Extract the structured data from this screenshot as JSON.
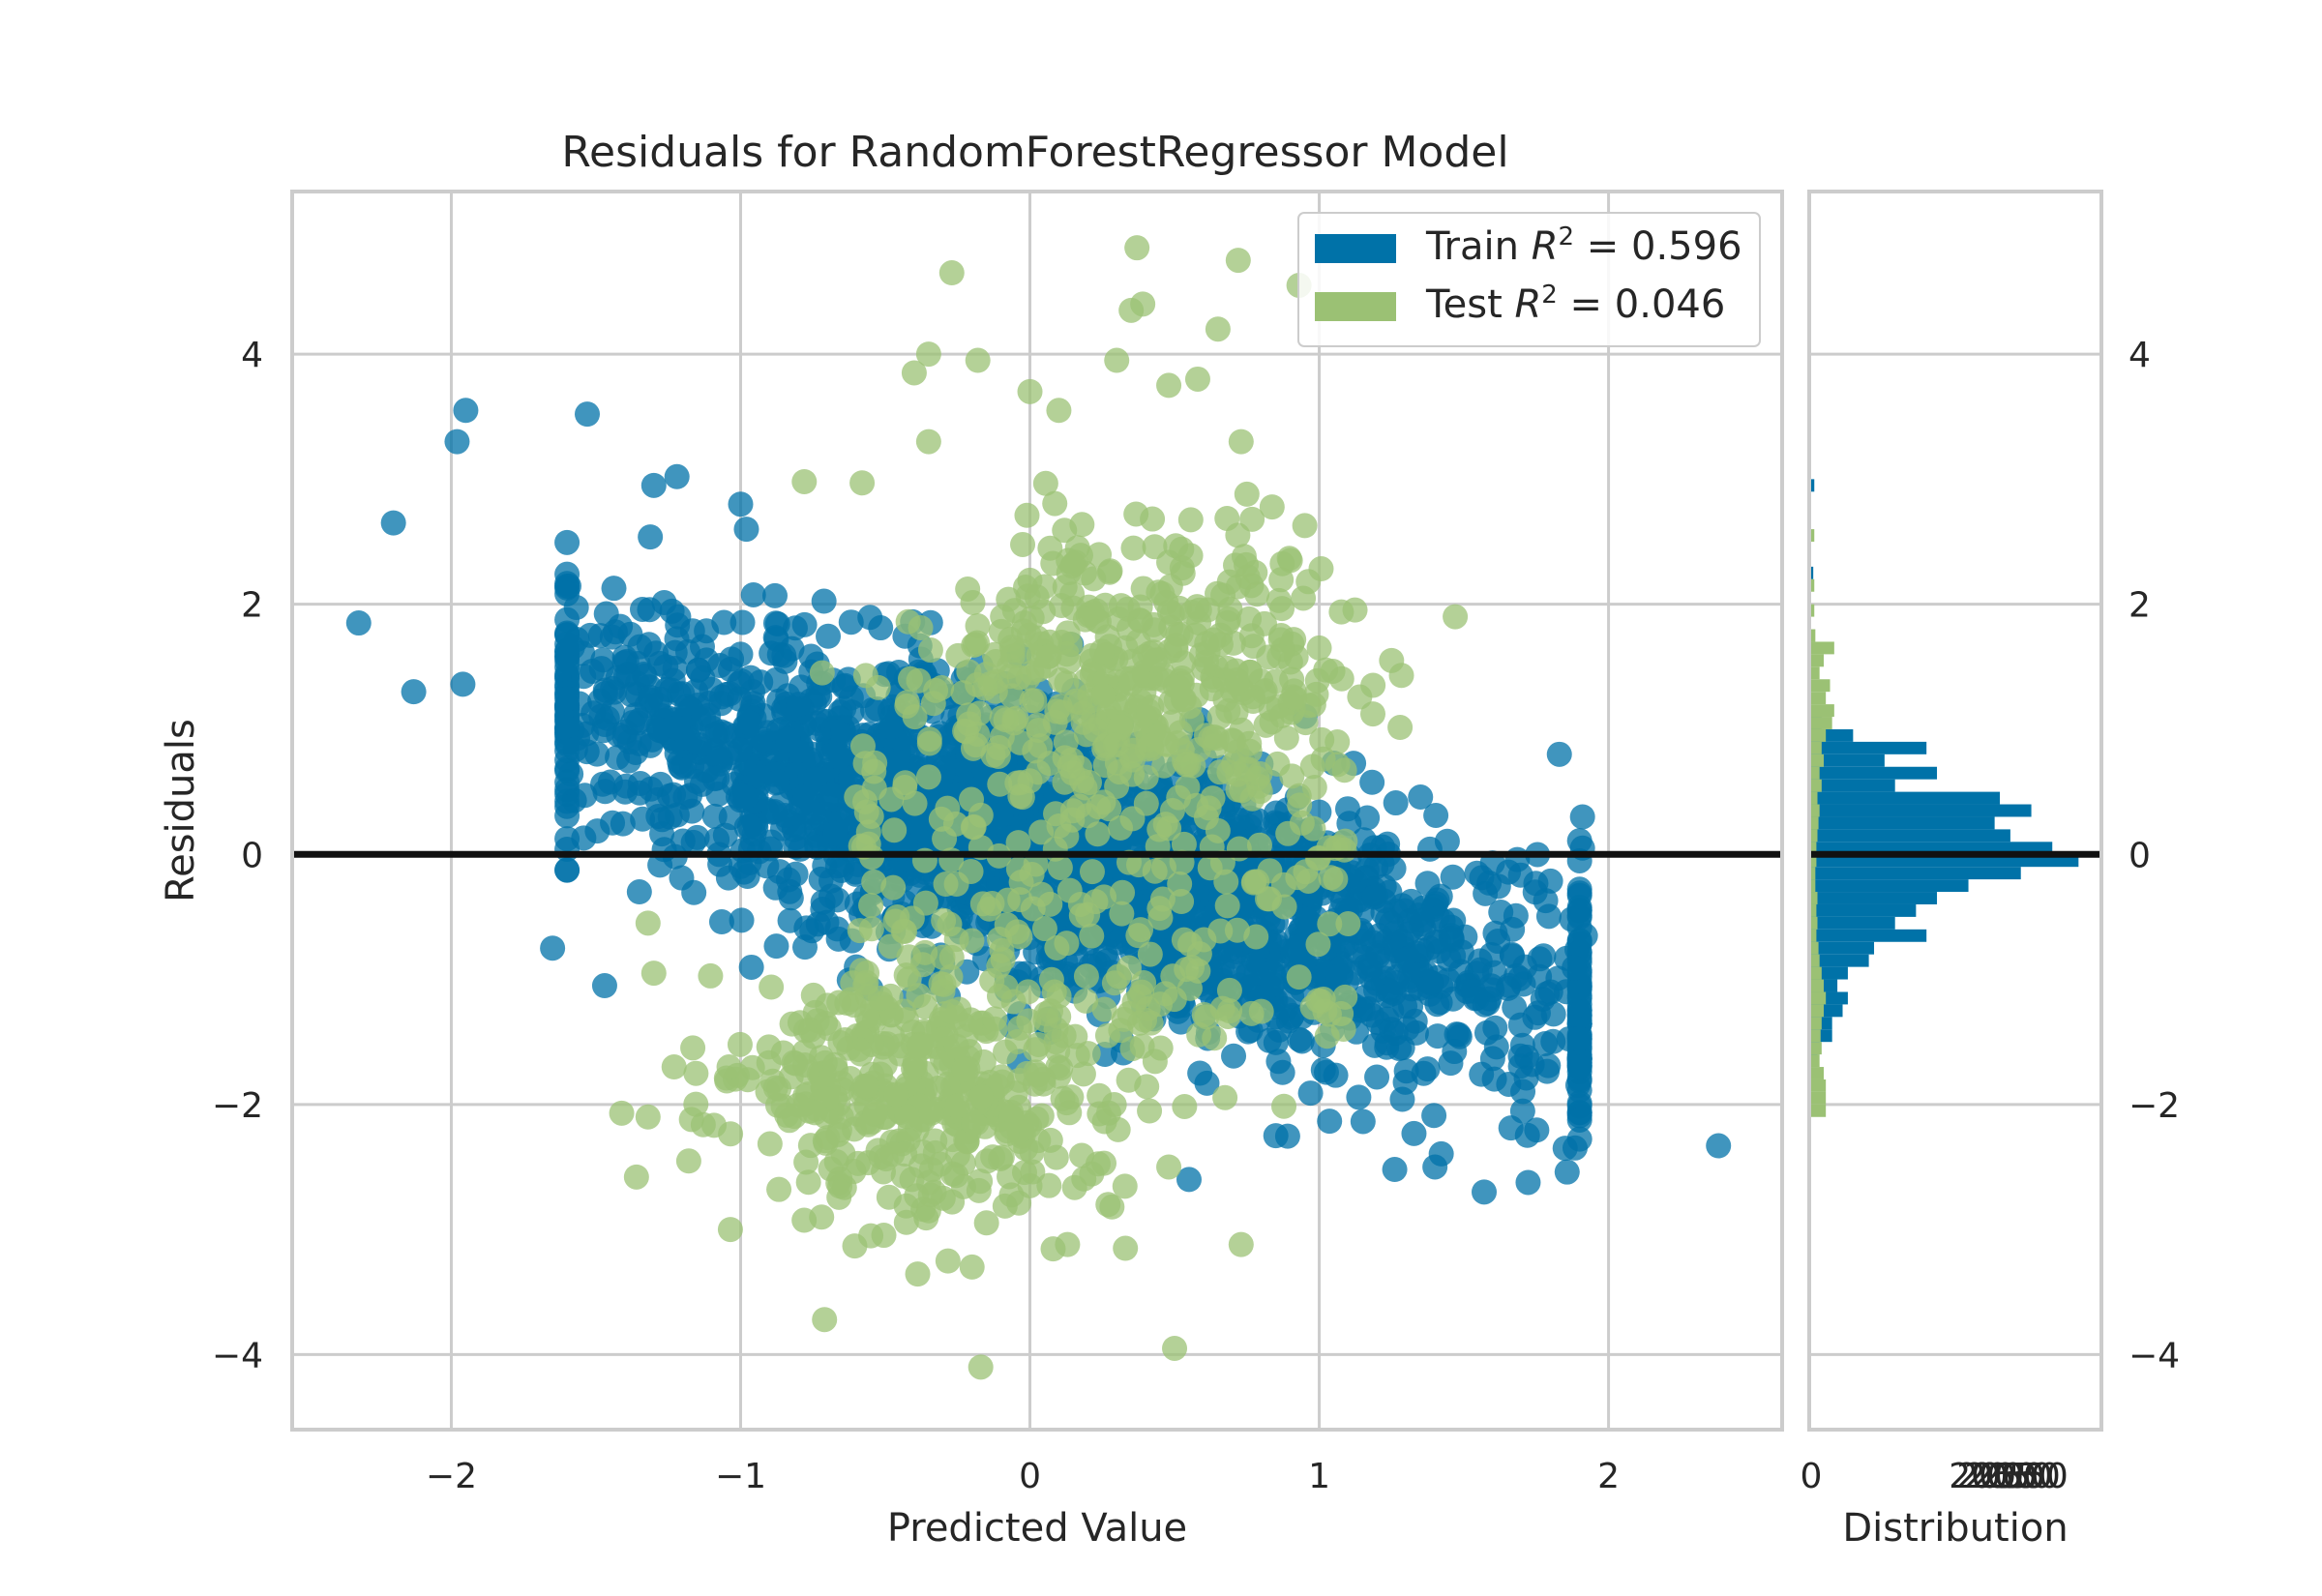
{
  "chart_data": [
    {
      "type": "scatter",
      "title": "Residuals for RandomForestRegressor Model",
      "xlabel": "Predicted Value",
      "ylabel": "Residuals",
      "xlim": [
        -2.55,
        2.6
      ],
      "ylim": [
        -4.6,
        5.3
      ],
      "xticks": [
        -2,
        -1,
        0,
        1,
        2
      ],
      "xtick_labels": [
        "−2",
        "−1",
        "0",
        "1",
        "2"
      ],
      "yticks": [
        -4,
        -2,
        0,
        2,
        4
      ],
      "ytick_labels": [
        "−4",
        "−2",
        "0",
        "2",
        "4"
      ],
      "grid": true,
      "legend_position": "top-right",
      "reference_line": 0,
      "series": [
        {
          "name": "Train",
          "legend_prefix": "Train ",
          "legend_value": "0.596",
          "color": "#0072a8",
          "generated": {
            "count": 2600,
            "x_mean": 0.1,
            "x_sd": 0.9,
            "slope": -0.7,
            "noise_sd": 0.55,
            "seed": 7
          },
          "points": [
            [
              -2.32,
              1.85
            ],
            [
              -2.2,
              2.65
            ],
            [
              -1.95,
              3.55
            ],
            [
              -1.98,
              3.3
            ],
            [
              -1.53,
              3.52
            ],
            [
              -2.13,
              1.3
            ],
            [
              -1.96,
              1.36
            ],
            [
              -1.65,
              -0.75
            ],
            [
              -1.47,
              -1.05
            ],
            [
              -1.3,
              2.95
            ],
            [
              -1.22,
              3.02
            ],
            [
              -1.0,
              2.8
            ],
            [
              -0.98,
              2.6
            ],
            [
              2.38,
              -2.33
            ],
            [
              1.57,
              -2.7
            ],
            [
              1.4,
              -2.5
            ],
            [
              0.55,
              -2.6
            ],
            [
              1.85,
              -2.35
            ],
            [
              0.85,
              -2.25
            ],
            [
              1.83,
              0.8
            ],
            [
              1.91,
              0.3
            ],
            [
              1.91,
              0.05
            ],
            [
              1.92,
              -0.65
            ],
            [
              1.8,
              -1.1
            ],
            [
              1.25,
              -1.4
            ],
            [
              -0.6,
              -0.9
            ],
            [
              -1.35,
              -0.3
            ],
            [
              -1.0,
              1.6
            ],
            [
              -0.8,
              1.2
            ],
            [
              0.9,
              -0.4
            ]
          ]
        },
        {
          "name": "Test",
          "legend_prefix": "Test ",
          "legend_value": "0.046",
          "color": "#9bc174",
          "generated": {
            "count": 1100,
            "x_mean": 0.1,
            "x_sd": 0.5,
            "slope": 0.3,
            "noise_sd": 0.9,
            "bimodal": [
              1.5,
              -1.9
            ],
            "seed": 11
          },
          "points": [
            [
              0.37,
              4.85
            ],
            [
              0.72,
              4.75
            ],
            [
              -0.27,
              4.65
            ],
            [
              0.93,
              4.55
            ],
            [
              0.35,
              4.35
            ],
            [
              0.39,
              4.4
            ],
            [
              0.65,
              4.2
            ],
            [
              -0.35,
              4.0
            ],
            [
              -0.18,
              3.95
            ],
            [
              0.3,
              3.95
            ],
            [
              0.58,
              3.8
            ],
            [
              0.48,
              3.75
            ],
            [
              0.0,
              3.7
            ],
            [
              -0.4,
              3.85
            ],
            [
              0.1,
              3.55
            ],
            [
              0.73,
              3.3
            ],
            [
              -0.35,
              3.3
            ],
            [
              0.75,
              2.88
            ],
            [
              -0.78,
              2.98
            ],
            [
              -0.58,
              2.97
            ],
            [
              0.9,
              2.35
            ],
            [
              1.0,
              1.65
            ],
            [
              1.47,
              1.9
            ],
            [
              1.25,
              1.55
            ],
            [
              -1.3,
              -0.95
            ],
            [
              -1.32,
              -0.55
            ],
            [
              -1.23,
              -1.7
            ],
            [
              -1.04,
              -1.7
            ],
            [
              -1.32,
              -2.1
            ],
            [
              -1.17,
              -2.12
            ],
            [
              -1.36,
              -2.58
            ],
            [
              -0.71,
              -3.72
            ],
            [
              -0.72,
              -2.9
            ],
            [
              -0.55,
              -3.05
            ],
            [
              -0.35,
              -2.85
            ],
            [
              -0.2,
              -3.3
            ],
            [
              -0.17,
              -4.1
            ],
            [
              0.5,
              -3.95
            ],
            [
              0.73,
              -3.12
            ],
            [
              0.33,
              -3.15
            ],
            [
              0.27,
              -2.8
            ],
            [
              0.13,
              -3.12
            ],
            [
              0.48,
              -2.5
            ],
            [
              -0.3,
              -2.75
            ],
            [
              0.0,
              -2.65
            ]
          ]
        }
      ]
    },
    {
      "type": "bar",
      "orientation": "horizontal",
      "xlabel": "Distribution",
      "xtick_labels": [
        "0",
        "2050"
      ],
      "yticks": [
        -4,
        -2,
        0,
        2,
        4
      ],
      "ytick_labels": [
        "−4",
        "−2",
        "0",
        "2",
        "4"
      ],
      "ylim": [
        -4.6,
        5.3
      ],
      "grid": true,
      "bin_width": 0.1,
      "series": [
        {
          "name": "Train",
          "color": "#0072a8",
          "bins": [
            [
              2.95,
              3
            ],
            [
              2.25,
              2
            ],
            [
              1.05,
              10
            ],
            [
              0.95,
              40
            ],
            [
              0.85,
              110
            ],
            [
              0.75,
              70
            ],
            [
              0.65,
              120
            ],
            [
              0.55,
              80
            ],
            [
              0.45,
              180
            ],
            [
              0.35,
              210
            ],
            [
              0.25,
              175
            ],
            [
              0.15,
              190
            ],
            [
              0.05,
              230
            ],
            [
              -0.05,
              255
            ],
            [
              -0.15,
              200
            ],
            [
              -0.25,
              150
            ],
            [
              -0.35,
              120
            ],
            [
              -0.45,
              100
            ],
            [
              -0.55,
              80
            ],
            [
              -0.65,
              110
            ],
            [
              -0.75,
              60
            ],
            [
              -0.85,
              55
            ],
            [
              -0.95,
              35
            ],
            [
              -1.05,
              25
            ],
            [
              -1.15,
              35
            ],
            [
              -1.25,
              30
            ],
            [
              -1.35,
              20
            ],
            [
              -1.45,
              20
            ],
            [
              -1.55,
              8
            ],
            [
              -1.65,
              6
            ]
          ]
        },
        {
          "name": "Test",
          "color": "#9bc174",
          "bins": [
            [
              2.55,
              3
            ],
            [
              2.15,
              3
            ],
            [
              1.95,
              3
            ],
            [
              1.75,
              4
            ],
            [
              1.65,
              22
            ],
            [
              1.55,
              12
            ],
            [
              1.45,
              8
            ],
            [
              1.35,
              18
            ],
            [
              1.25,
              14
            ],
            [
              1.15,
              22
            ],
            [
              1.05,
              20
            ],
            [
              0.95,
              14
            ],
            [
              0.85,
              10
            ],
            [
              0.75,
              12
            ],
            [
              0.65,
              8
            ],
            [
              0.55,
              10
            ],
            [
              0.45,
              6
            ],
            [
              0.35,
              8
            ],
            [
              0.25,
              7
            ],
            [
              0.15,
              6
            ],
            [
              0.05,
              5
            ],
            [
              -0.05,
              5
            ],
            [
              -0.15,
              4
            ],
            [
              -0.25,
              4
            ],
            [
              -0.35,
              6
            ],
            [
              -0.45,
              5
            ],
            [
              -0.55,
              6
            ],
            [
              -0.65,
              5
            ],
            [
              -0.75,
              7
            ],
            [
              -0.85,
              8
            ],
            [
              -0.95,
              10
            ],
            [
              -1.05,
              12
            ],
            [
              -1.15,
              14
            ],
            [
              -1.25,
              12
            ],
            [
              -1.35,
              10
            ],
            [
              -1.45,
              9
            ],
            [
              -1.55,
              10
            ],
            [
              -1.65,
              8
            ],
            [
              -1.75,
              12
            ],
            [
              -1.85,
              14
            ],
            [
              -1.95,
              14
            ],
            [
              -2.05,
              14
            ]
          ]
        }
      ],
      "xmax": 275
    }
  ]
}
